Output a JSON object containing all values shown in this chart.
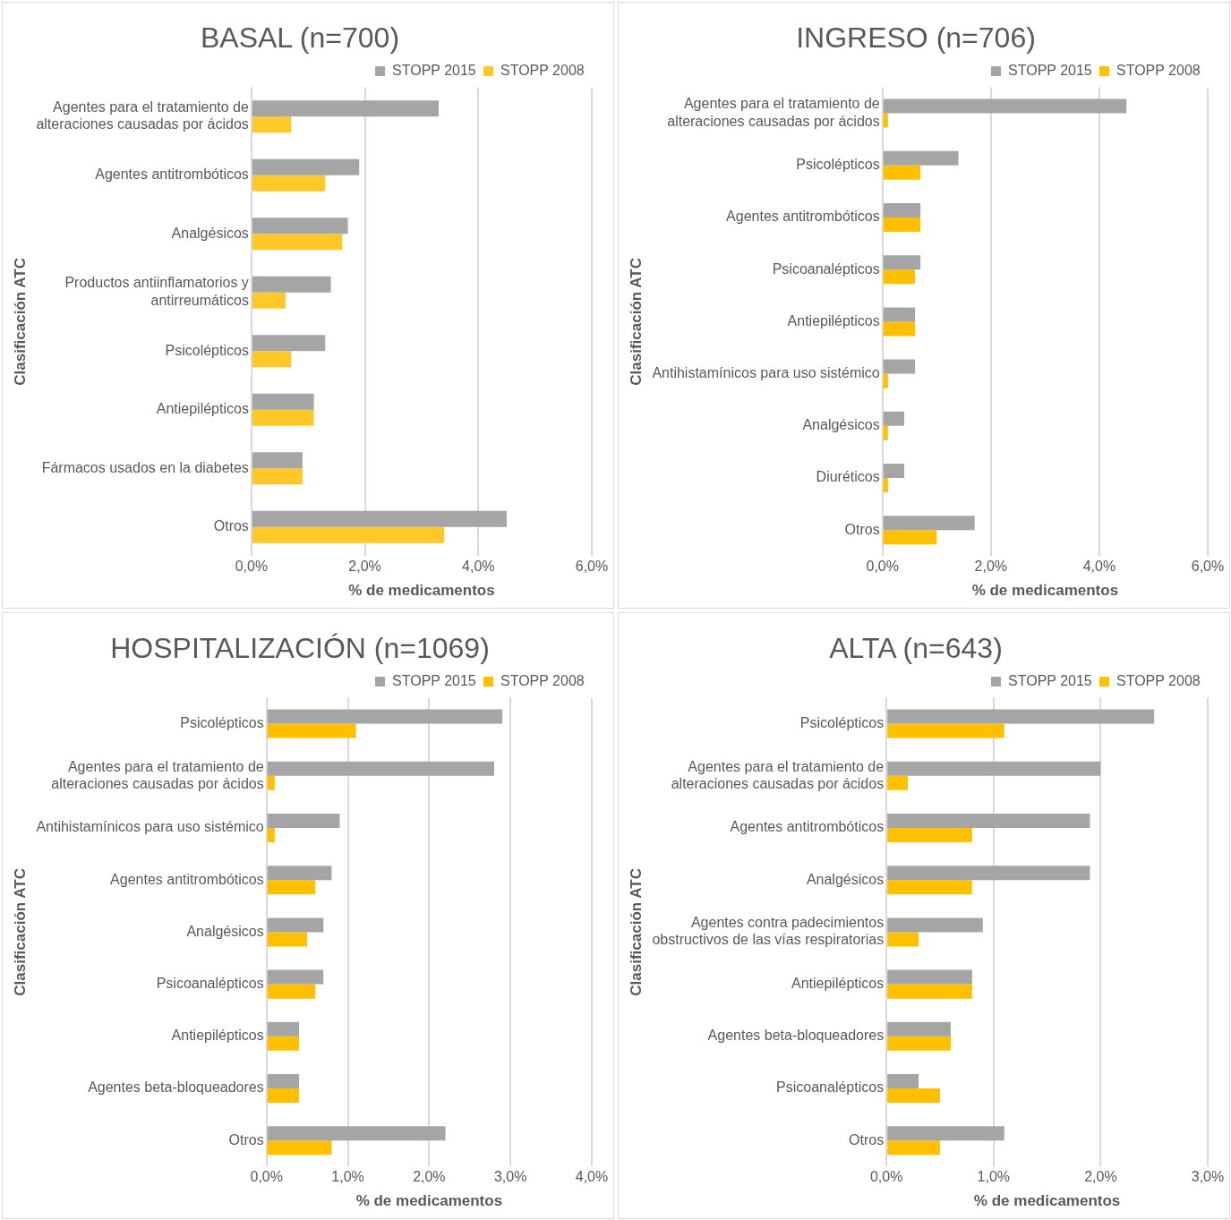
{
  "chart_data": [
    {
      "type": "bar",
      "orientation": "horizontal",
      "title": "BASAL (n=700)",
      "xlabel": "% de medicamentos",
      "ylabel": "Clasificación ATC",
      "categories": [
        "Agentes para el tratamiento de alteraciones causadas por ácidos",
        "Agentes antitrombóticos",
        "Analgésicos",
        "Productos antiinflamatorios y antirreumáticos",
        "Psicolépticos",
        "Antiepilépticos",
        "Fármacos usados en la diabetes",
        "Otros"
      ],
      "series": [
        {
          "name": "STOPP 2015",
          "color": "#a5a5a5",
          "values": [
            3.3,
            1.9,
            1.7,
            1.4,
            1.3,
            1.1,
            0.9,
            4.5
          ]
        },
        {
          "name": "STOPP 2008",
          "color": "#ffc829",
          "values": [
            0.7,
            1.3,
            1.6,
            0.6,
            0.7,
            1.1,
            0.9,
            3.4
          ]
        }
      ],
      "xlim": [
        0,
        6
      ],
      "xticks": [
        {
          "value": 0,
          "label": "0,0%"
        },
        {
          "value": 2,
          "label": "2,0%"
        },
        {
          "value": 4,
          "label": "4,0%"
        },
        {
          "value": 6,
          "label": "6,0%"
        }
      ],
      "grid": "x",
      "legend": "top right"
    },
    {
      "type": "bar",
      "orientation": "horizontal",
      "title": "INGRESO (n=706)",
      "xlabel": "% de medicamentos",
      "ylabel": "Clasificación ATC",
      "categories": [
        "Agentes para el tratamiento de alteraciones causadas por ácidos",
        "Psicolépticos",
        "Agentes antitrombóticos",
        "Psicoanalépticos",
        "Antiepilépticos",
        "Antihistamínicos para uso sistémico",
        "Analgésicos",
        "Diuréticos",
        "Otros"
      ],
      "series": [
        {
          "name": "STOPP 2015",
          "color": "#a5a5a5",
          "values": [
            4.5,
            1.4,
            0.7,
            0.7,
            0.6,
            0.6,
            0.4,
            0.4,
            1.7
          ]
        },
        {
          "name": "STOPP 2008",
          "color": "#ffc000",
          "values": [
            0.1,
            0.7,
            0.7,
            0.6,
            0.6,
            0.1,
            0.1,
            0.1,
            1.0
          ]
        }
      ],
      "xlim": [
        0,
        6
      ],
      "xticks": [
        {
          "value": 0,
          "label": "0,0%"
        },
        {
          "value": 2,
          "label": "2,0%"
        },
        {
          "value": 4,
          "label": "4,0%"
        },
        {
          "value": 6,
          "label": "6,0%"
        }
      ],
      "grid": "x",
      "legend": "top right"
    },
    {
      "type": "bar",
      "orientation": "horizontal",
      "title": "HOSPITALIZACIÓN (n=1069)",
      "xlabel": "% de medicamentos",
      "ylabel": "Clasificación ATC",
      "categories": [
        "Psicolépticos",
        "Agentes para el tratamiento de alteraciones causadas por ácidos",
        "Antihistamínicos para uso sistémico",
        "Agentes antitrombóticos",
        "Analgésicos",
        "Psicoanalépticos",
        "Antiepilépticos",
        "Agentes beta-bloqueadores",
        "Otros"
      ],
      "series": [
        {
          "name": "STOPP 2015",
          "color": "#a5a5a5",
          "values": [
            2.9,
            2.8,
            0.9,
            0.8,
            0.7,
            0.7,
            0.4,
            0.4,
            2.2
          ]
        },
        {
          "name": "STOPP 2008",
          "color": "#ffc000",
          "values": [
            1.1,
            0.1,
            0.1,
            0.6,
            0.5,
            0.6,
            0.4,
            0.4,
            0.8
          ]
        }
      ],
      "xlim": [
        0,
        4
      ],
      "xticks": [
        {
          "value": 0,
          "label": "0,0%"
        },
        {
          "value": 1,
          "label": "1,0%"
        },
        {
          "value": 2,
          "label": "2,0%"
        },
        {
          "value": 3,
          "label": "3,0%"
        },
        {
          "value": 4,
          "label": "4,0%"
        }
      ],
      "grid": "x",
      "legend": "top right"
    },
    {
      "type": "bar",
      "orientation": "horizontal",
      "title": "ALTA (n=643)",
      "xlabel": "% de medicamentos",
      "ylabel": "Clasificación ATC",
      "categories": [
        "Psicolépticos",
        "Agentes para el tratamiento de alteraciones causadas por ácidos",
        "Agentes antitrombóticos",
        "Analgésicos",
        "Agentes contra padecimientos obstructivos de las vías respiratorias",
        "Antiepilépticos",
        "Agentes beta-bloqueadores",
        "Psicoanalépticos",
        "Otros"
      ],
      "series": [
        {
          "name": "STOPP 2015",
          "color": "#a5a5a5",
          "values": [
            2.5,
            2.0,
            1.9,
            1.9,
            0.9,
            0.8,
            0.6,
            0.3,
            1.1
          ]
        },
        {
          "name": "STOPP 2008",
          "color": "#ffc000",
          "values": [
            1.1,
            0.2,
            0.8,
            0.8,
            0.3,
            0.8,
            0.6,
            0.5,
            0.5
          ]
        }
      ],
      "xlim": [
        0,
        3
      ],
      "xticks": [
        {
          "value": 0,
          "label": "0,0%"
        },
        {
          "value": 1,
          "label": "1,0%"
        },
        {
          "value": 2,
          "label": "2,0%"
        },
        {
          "value": 3,
          "label": "3,0%"
        }
      ],
      "grid": "x",
      "legend": "top right"
    }
  ]
}
